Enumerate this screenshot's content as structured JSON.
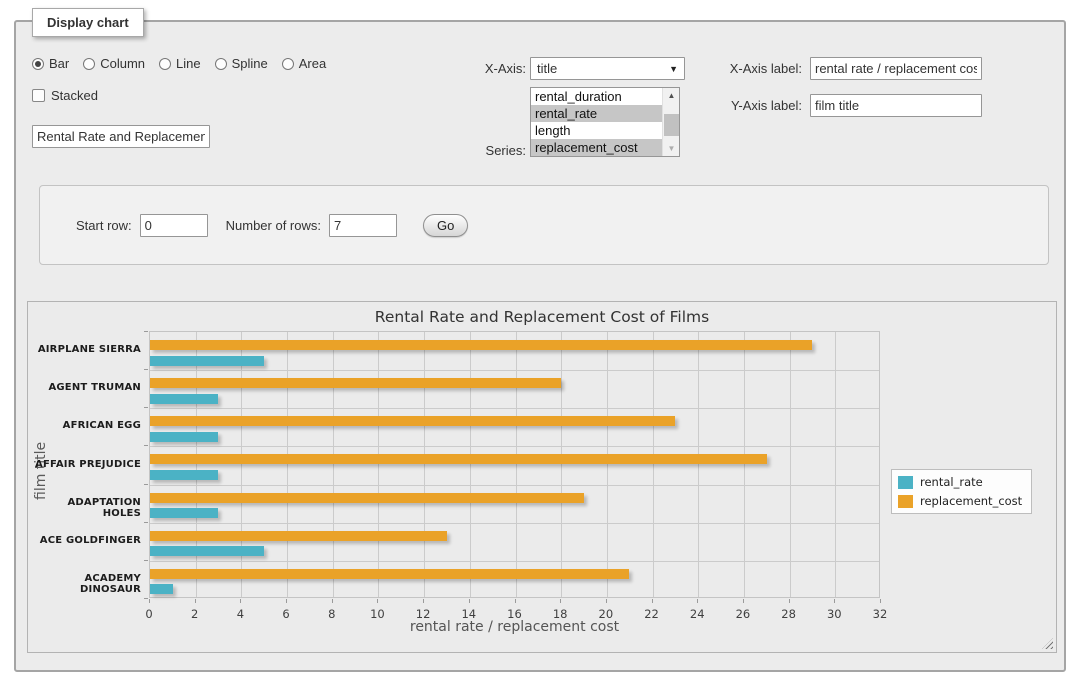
{
  "panel": {
    "tab_title": "Display chart"
  },
  "chart_type": {
    "options": [
      {
        "label": "Bar",
        "selected": true
      },
      {
        "label": "Column",
        "selected": false
      },
      {
        "label": "Line",
        "selected": false
      },
      {
        "label": "Spline",
        "selected": false
      },
      {
        "label": "Area",
        "selected": false
      }
    ]
  },
  "stacked": {
    "label": "Stacked",
    "checked": false
  },
  "chart_title_input": {
    "value": "Rental Rate and Replacement Cost of Films"
  },
  "x_axis_select": {
    "label": "X-Axis:",
    "value": "title"
  },
  "series_list": {
    "label": "Series:",
    "options": [
      {
        "name": "rental_duration",
        "selected": false
      },
      {
        "name": "rental_rate",
        "selected": true
      },
      {
        "name": "length",
        "selected": false
      },
      {
        "name": "replacement_cost",
        "selected": true
      }
    ]
  },
  "x_axis_label_input": {
    "label": "X-Axis label:",
    "value": "rental rate / replacement cost"
  },
  "y_axis_label_input": {
    "label": "Y-Axis label:",
    "value": "film title"
  },
  "row_controls": {
    "start_row_label": "Start row:",
    "start_row_value": "0",
    "num_rows_label": "Number of rows:",
    "num_rows_value": "7",
    "go_label": "Go"
  },
  "chart_data": {
    "type": "bar",
    "orientation": "horizontal",
    "title": "Rental Rate and Replacement Cost of Films",
    "xlabel": "rental rate / replacement cost",
    "ylabel": "film title",
    "categories": [
      "AIRPLANE SIERRA",
      "AGENT TRUMAN",
      "AFRICAN EGG",
      "AFFAIR PREJUDICE",
      "ADAPTATION HOLES",
      "ACE GOLDFINGER",
      "ACADEMY DINOSAUR"
    ],
    "series": [
      {
        "name": "rental_rate",
        "color": "#4bb2c5",
        "values": [
          4.99,
          2.99,
          2.99,
          2.99,
          2.99,
          4.99,
          0.99
        ]
      },
      {
        "name": "replacement_cost",
        "color": "#EAA228",
        "values": [
          28.99,
          17.99,
          22.99,
          26.99,
          18.99,
          12.99,
          20.99
        ]
      }
    ],
    "xlim": [
      0,
      32
    ],
    "xticks": [
      0,
      2,
      4,
      6,
      8,
      10,
      12,
      14,
      16,
      18,
      20,
      22,
      24,
      26,
      28,
      30,
      32
    ],
    "grid": true,
    "legend_position": "right",
    "bar_order_in_group": [
      "replacement_cost",
      "rental_rate"
    ]
  }
}
